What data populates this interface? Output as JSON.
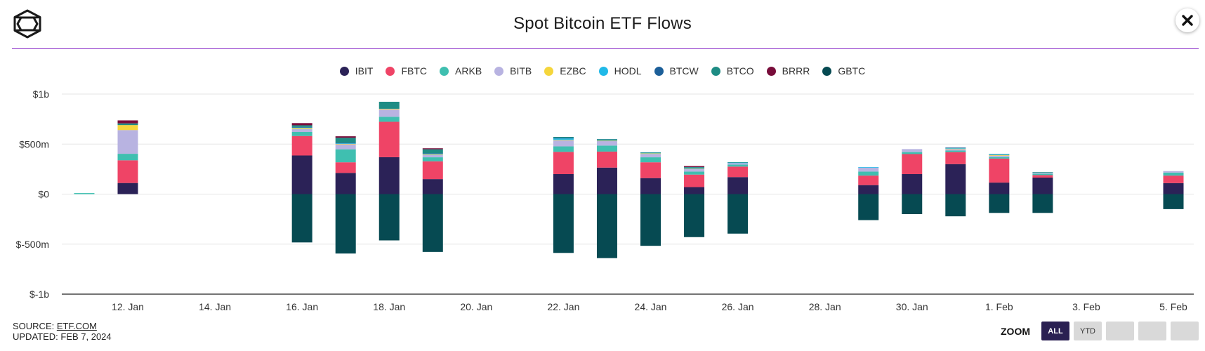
{
  "header": {
    "title": "Spot Bitcoin ETF Flows",
    "close_label": "✕"
  },
  "legend": [
    {
      "name": "IBIT",
      "color": "#2b2257"
    },
    {
      "name": "FBTC",
      "color": "#ef4466"
    },
    {
      "name": "ARKB",
      "color": "#3fbfb0"
    },
    {
      "name": "BITB",
      "color": "#b8b3e1"
    },
    {
      "name": "EZBC",
      "color": "#f5d63c"
    },
    {
      "name": "HODL",
      "color": "#20b9e8"
    },
    {
      "name": "BTCW",
      "color": "#1c5f99"
    },
    {
      "name": "BTCO",
      "color": "#1e8c84"
    },
    {
      "name": "BRRR",
      "color": "#780c3a"
    },
    {
      "name": "GBTC",
      "color": "#064a52"
    }
  ],
  "footer": {
    "source_prefix": "SOURCE: ",
    "source_link": "ETF.COM",
    "updated": "UPDATED: FEB 7, 2024"
  },
  "zoom": {
    "label": "ZOOM",
    "buttons": [
      "ALL",
      "YTD",
      "",
      "",
      ""
    ],
    "active": "ALL"
  },
  "chart_data": {
    "type": "bar",
    "stacked": true,
    "title": "Spot Bitcoin ETF Flows",
    "ylabel": "",
    "xlabel": "",
    "ylim": [
      -1000,
      1000
    ],
    "y_unit": "$M",
    "y_ticks": [
      -1000,
      -500,
      0,
      500,
      1000
    ],
    "y_tick_labels": [
      "$-1b",
      "$-500m",
      "$0",
      "$500m",
      "$1b"
    ],
    "x_ticks": [
      "12. Jan",
      "14. Jan",
      "16. Jan",
      "18. Jan",
      "20. Jan",
      "22. Jan",
      "24. Jan",
      "26. Jan",
      "28. Jan",
      "30. Jan",
      "1. Feb",
      "3. Feb",
      "5. Feb"
    ],
    "x_domain": [
      "2024-01-10",
      "2024-02-05"
    ],
    "grid": true,
    "legend_position": "top-center",
    "categories": [
      "2024-01-11",
      "2024-01-12",
      "2024-01-16",
      "2024-01-17",
      "2024-01-18",
      "2024-01-19",
      "2024-01-22",
      "2024-01-23",
      "2024-01-24",
      "2024-01-25",
      "2024-01-26",
      "2024-01-29",
      "2024-01-30",
      "2024-01-31",
      "2024-02-01",
      "2024-02-02",
      "2024-02-05"
    ],
    "series": [
      {
        "name": "IBIT",
        "values": [
          0,
          111,
          386,
          212,
          369,
          150,
          200,
          265,
          160,
          70,
          170,
          90,
          200,
          300,
          115,
          165,
          110
        ]
      },
      {
        "name": "FBTC",
        "values": [
          0,
          227,
          195,
          106,
          354,
          178,
          222,
          160,
          158,
          125,
          105,
          95,
          200,
          120,
          240,
          25,
          75
        ]
      },
      {
        "name": "ARKB",
        "values": [
          10,
          65,
          40,
          130,
          50,
          40,
          55,
          60,
          50,
          30,
          20,
          40,
          20,
          15,
          15,
          15,
          30
        ]
      },
      {
        "name": "BITB",
        "values": [
          0,
          237,
          30,
          50,
          75,
          25,
          60,
          45,
          35,
          25,
          15,
          40,
          30,
          15,
          15,
          10,
          15
        ]
      },
      {
        "name": "EZBC",
        "values": [
          0,
          50,
          10,
          5,
          5,
          5,
          5,
          5,
          5,
          5,
          0,
          0,
          0,
          5,
          5,
          0,
          0
        ]
      },
      {
        "name": "HODL",
        "values": [
          0,
          0,
          5,
          5,
          0,
          5,
          15,
          5,
          5,
          5,
          5,
          5,
          0,
          5,
          5,
          0,
          0
        ]
      },
      {
        "name": "BTCW",
        "values": [
          0,
          0,
          5,
          5,
          0,
          5,
          5,
          5,
          0,
          5,
          0,
          0,
          0,
          5,
          0,
          0,
          0
        ]
      },
      {
        "name": "BTCO",
        "values": [
          0,
          17,
          17,
          50,
          70,
          40,
          10,
          5,
          5,
          5,
          5,
          0,
          0,
          0,
          5,
          5,
          0
        ]
      },
      {
        "name": "BRRR",
        "values": [
          0,
          30,
          22,
          15,
          0,
          10,
          0,
          0,
          0,
          10,
          0,
          0,
          0,
          0,
          0,
          0,
          0
        ]
      },
      {
        "name": "GBTC",
        "values": [
          0,
          0,
          -483,
          -594,
          -463,
          -578,
          -588,
          -640,
          -517,
          -430,
          -395,
          -260,
          -200,
          -222,
          -188,
          -188,
          -150
        ]
      }
    ]
  }
}
